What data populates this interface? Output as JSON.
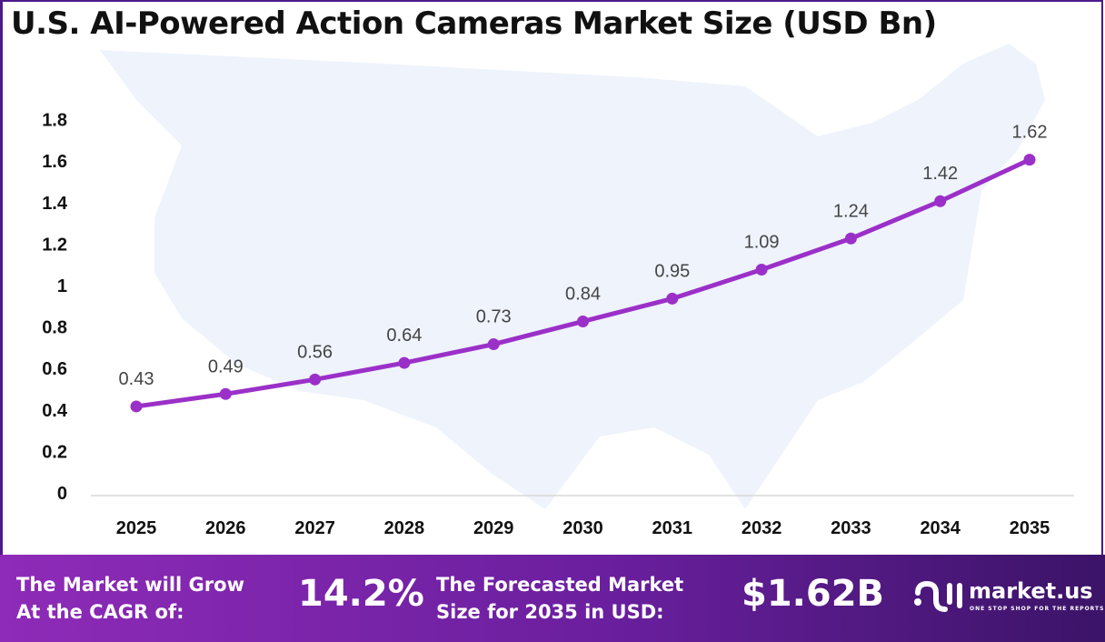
{
  "title": "U.S. AI-Powered Action Cameras Market Size (USD Bn)",
  "chart_data": {
    "type": "line",
    "title": "U.S. AI-Powered Action Cameras Market Size (USD Bn)",
    "categories": [
      "2025",
      "2026",
      "2027",
      "2028",
      "2029",
      "2030",
      "2031",
      "2032",
      "2033",
      "2034",
      "2035"
    ],
    "values": [
      0.43,
      0.49,
      0.56,
      0.64,
      0.73,
      0.84,
      0.95,
      1.09,
      1.24,
      1.42,
      1.62
    ],
    "data_labels": [
      "0.43",
      "0.49",
      "0.56",
      "0.64",
      "0.73",
      "0.84",
      "0.95",
      "1.09",
      "1.24",
      "1.42",
      "1.62"
    ],
    "y_ticks": [
      "0",
      "0.2",
      "0.4",
      "0.6",
      "0.8",
      "1",
      "1.2",
      "1.4",
      "1.6",
      "1.8"
    ],
    "ylim": [
      0,
      1.8
    ],
    "grid": false,
    "legend": "none",
    "series_color": "#9b30c8"
  },
  "footer": {
    "cagr_label_1": "The Market will Grow",
    "cagr_label_2": "At the CAGR of:",
    "cagr_value": "14.2%",
    "forecast_label_1": "The Forecasted Market",
    "forecast_label_2": "Size for 2035 in USD:",
    "forecast_value": "$1.62B",
    "logo_name": "market.us",
    "logo_tagline": "ONE STOP SHOP FOR THE REPORTS"
  }
}
